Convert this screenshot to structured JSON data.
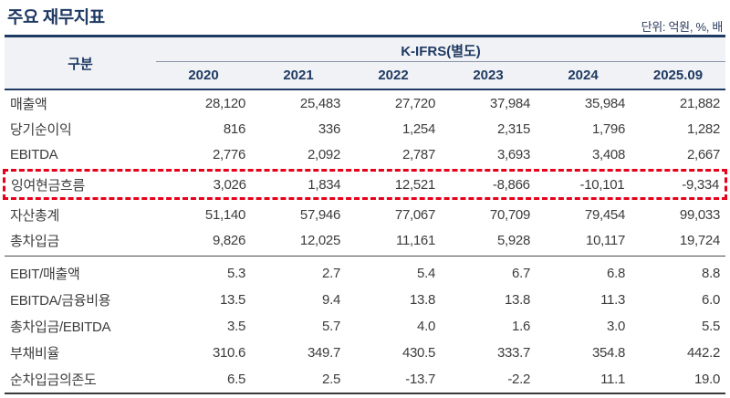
{
  "page": {
    "title": "주요 재무지표",
    "unit_note": "단위: 억원, %, 배"
  },
  "colors": {
    "accent_navy": "#1f3a63",
    "header_background": "#f1f2f5",
    "highlight_red": "#e60019",
    "body_text": "#3c3c3c"
  },
  "table": {
    "corner_header": "구분",
    "group_header": "K-IFRS(별도)",
    "columns": [
      "2020",
      "2021",
      "2022",
      "2023",
      "2024",
      "2025.09"
    ],
    "rows": [
      {
        "label": "매출액",
        "values": [
          "28,120",
          "25,483",
          "27,720",
          "37,984",
          "35,984",
          "21,882"
        ]
      },
      {
        "label": "당기순이익",
        "values": [
          "816",
          "336",
          "1,254",
          "2,315",
          "1,796",
          "1,282"
        ]
      },
      {
        "label": "EBITDA",
        "values": [
          "2,776",
          "2,092",
          "2,787",
          "3,693",
          "3,408",
          "2,667"
        ]
      },
      {
        "label": "잉여현금흐름",
        "values": [
          "3,026",
          "1,834",
          "12,521",
          "-8,866",
          "-10,101",
          "-9,334"
        ],
        "highlighted": true
      },
      {
        "label": "자산총계",
        "values": [
          "51,140",
          "57,946",
          "77,067",
          "70,709",
          "79,454",
          "99,033"
        ]
      },
      {
        "label": "총차입금",
        "values": [
          "9,826",
          "12,025",
          "11,161",
          "5,928",
          "10,117",
          "19,724"
        ]
      },
      {
        "label": "EBIT/매출액",
        "values": [
          "5.3",
          "2.7",
          "5.4",
          "6.7",
          "6.8",
          "8.8"
        ]
      },
      {
        "label": "EBITDA/금융비용",
        "values": [
          "13.5",
          "9.4",
          "13.8",
          "13.8",
          "11.3",
          "6.0"
        ]
      },
      {
        "label": "총차입금/EBITDA",
        "values": [
          "3.5",
          "5.7",
          "4.0",
          "1.6",
          "3.0",
          "5.5"
        ]
      },
      {
        "label": "부채비율",
        "values": [
          "310.6",
          "349.7",
          "430.5",
          "333.7",
          "354.8",
          "442.2"
        ]
      },
      {
        "label": "순차입금의존도",
        "values": [
          "6.5",
          "2.5",
          "-13.7",
          "-2.2",
          "11.1",
          "19.0"
        ]
      }
    ]
  }
}
